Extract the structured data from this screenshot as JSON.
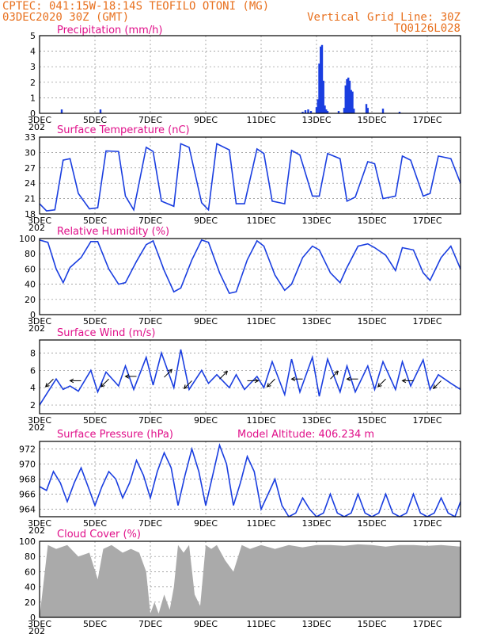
{
  "header": {
    "line1_left": "CPTEC:   041:15W-18:14S  TEOFILO OTONI (MG)",
    "line2_left": "03DEC2020 30Z (GMT)",
    "line2_right": "Vertical Grid Line: 30Z",
    "line3_right": "TQ0126L028"
  },
  "colors": {
    "header": "#e8701e",
    "title": "#e0108a",
    "series": "#1a3ee0",
    "cloud": "#aaaaaa"
  },
  "x_axis": {
    "tick_labels": [
      "3DEC",
      "5DEC",
      "7DEC",
      "9DEC",
      "11DEC",
      "13DEC",
      "15DEC",
      "17DEC"
    ],
    "tick_days": [
      0,
      2,
      4,
      6,
      8,
      10,
      12,
      14
    ],
    "range_days": [
      0,
      15.2
    ],
    "year_fragment": "202"
  },
  "chart_data": [
    {
      "type": "bar",
      "title": "Precipitation (mm/h)",
      "ylim": [
        0,
        5
      ],
      "yticks": [
        0,
        1,
        2,
        3,
        4,
        5
      ],
      "grid": true,
      "x": [
        0.8,
        2.2,
        9.5,
        9.6,
        9.7,
        9.8,
        10.0,
        10.05,
        10.1,
        10.15,
        10.2,
        10.25,
        10.3,
        10.35,
        10.4,
        10.8,
        11.0,
        11.05,
        11.1,
        11.15,
        11.2,
        11.25,
        11.3,
        11.35,
        11.8,
        11.85,
        12.4,
        13.0
      ],
      "values": [
        0.25,
        0.25,
        0.1,
        0.2,
        0.25,
        0.15,
        0.4,
        0.9,
        3.2,
        4.3,
        4.4,
        2.1,
        0.5,
        0.25,
        0.15,
        0.15,
        0.35,
        1.8,
        2.2,
        2.3,
        2.1,
        1.5,
        1.4,
        0.3,
        0.6,
        0.35,
        0.3,
        0.1
      ]
    },
    {
      "type": "line",
      "title": "Surface Temperature (nC)",
      "ylim": [
        18,
        33
      ],
      "yticks": [
        18,
        21,
        24,
        27,
        30,
        33
      ],
      "grid": true,
      "series": [
        {
          "x": [
            0.0,
            0.25,
            0.55,
            0.85,
            1.1,
            1.4,
            1.8,
            2.1,
            2.4,
            2.85,
            3.1,
            3.4,
            3.85,
            4.1,
            4.4,
            4.85,
            5.1,
            5.4,
            5.85,
            6.1,
            6.4,
            6.85,
            7.1,
            7.4,
            7.85,
            8.1,
            8.4,
            8.85,
            9.1,
            9.4,
            9.85,
            10.1,
            10.4,
            10.85,
            11.1,
            11.4,
            11.85,
            12.1,
            12.4,
            12.85,
            13.1,
            13.4,
            13.85,
            14.1,
            14.4,
            14.85,
            15.2
          ],
          "values": [
            20.0,
            18.6,
            18.8,
            28.5,
            28.8,
            22.0,
            19.0,
            19.2,
            30.3,
            30.2,
            21.5,
            18.8,
            31.0,
            30.2,
            20.5,
            19.5,
            31.7,
            31.0,
            20.2,
            18.8,
            31.7,
            30.5,
            20.0,
            20.0,
            30.7,
            29.8,
            20.5,
            20.0,
            30.4,
            29.5,
            21.5,
            21.5,
            29.8,
            28.8,
            20.5,
            21.3,
            28.2,
            27.8,
            21.0,
            21.5,
            29.3,
            28.5,
            21.5,
            22.0,
            29.3,
            28.8,
            24.0
          ]
        }
      ]
    },
    {
      "type": "line",
      "title": "Relative Humidity (%)",
      "ylim": [
        0,
        100
      ],
      "yticks": [
        0,
        20,
        40,
        60,
        80,
        100
      ],
      "grid": true,
      "series": [
        {
          "x": [
            0.0,
            0.3,
            0.6,
            0.85,
            1.1,
            1.5,
            1.85,
            2.1,
            2.5,
            2.85,
            3.1,
            3.5,
            3.85,
            4.1,
            4.5,
            4.85,
            5.1,
            5.5,
            5.85,
            6.1,
            6.5,
            6.85,
            7.1,
            7.5,
            7.85,
            8.1,
            8.5,
            8.85,
            9.1,
            9.5,
            9.85,
            10.1,
            10.5,
            10.85,
            11.1,
            11.5,
            11.85,
            12.1,
            12.5,
            12.85,
            13.1,
            13.5,
            13.85,
            14.1,
            14.5,
            14.85,
            15.2
          ],
          "values": [
            98,
            95,
            60,
            42,
            62,
            75,
            96,
            96,
            60,
            40,
            42,
            70,
            92,
            97,
            58,
            30,
            35,
            72,
            98,
            95,
            55,
            28,
            30,
            72,
            97,
            90,
            52,
            32,
            40,
            75,
            90,
            85,
            55,
            42,
            62,
            90,
            93,
            88,
            78,
            58,
            88,
            85,
            55,
            45,
            75,
            90,
            60
          ]
        }
      ]
    },
    {
      "type": "line",
      "title": "Surface Wind (m/s)",
      "ylim": [
        1,
        9.5
      ],
      "yticks": [
        2,
        4,
        6,
        8
      ],
      "grid": true,
      "series": [
        {
          "x": [
            0.0,
            0.3,
            0.6,
            0.85,
            1.1,
            1.4,
            1.85,
            2.1,
            2.4,
            2.85,
            3.1,
            3.4,
            3.85,
            4.1,
            4.4,
            4.85,
            5.1,
            5.4,
            5.85,
            6.1,
            6.4,
            6.85,
            7.1,
            7.4,
            7.85,
            8.1,
            8.4,
            8.85,
            9.1,
            9.4,
            9.85,
            10.1,
            10.4,
            10.85,
            11.1,
            11.4,
            11.85,
            12.1,
            12.4,
            12.85,
            13.1,
            13.4,
            13.85,
            14.1,
            14.4,
            14.85,
            15.2
          ],
          "values": [
            2.0,
            3.5,
            5.0,
            3.8,
            4.2,
            3.6,
            6.0,
            3.5,
            5.8,
            4.2,
            6.5,
            3.8,
            7.5,
            4.3,
            8.0,
            4.0,
            8.4,
            3.8,
            6.0,
            4.5,
            5.5,
            4.0,
            5.5,
            3.8,
            5.3,
            4.0,
            7.0,
            3.2,
            7.3,
            3.5,
            7.5,
            3.0,
            7.3,
            3.5,
            6.5,
            3.5,
            6.5,
            3.8,
            7.0,
            3.8,
            7.0,
            4.2,
            7.2,
            3.8,
            5.5,
            4.5,
            3.8
          ]
        }
      ],
      "wind_arrows": {
        "x": [
          0.5,
          1.5,
          2.5,
          3.5,
          4.5,
          5.5,
          6.5,
          7.5,
          8.5,
          9.5,
          10.5,
          11.5,
          12.5,
          13.5,
          14.5
        ],
        "speed": [
          5.0,
          4.8,
          5.0,
          5.3,
          5.2,
          4.8,
          5.0,
          4.8,
          5.0,
          5.0,
          5.0,
          5.0,
          5.0,
          4.8,
          4.8
        ],
        "direction": [
          "SW",
          "W",
          "SW",
          "W",
          "NE",
          "SW",
          "NE",
          "E",
          "SW",
          "W",
          "NE",
          "W",
          "SW",
          "W",
          "SW"
        ]
      }
    },
    {
      "type": "line",
      "title": "Surface Pressure (hPa)",
      "annotation": "Model Altitude: 406.234 m",
      "ylim": [
        963,
        973
      ],
      "yticks": [
        964,
        966,
        968,
        970,
        972
      ],
      "grid": true,
      "series": [
        {
          "x": [
            0.0,
            0.25,
            0.5,
            0.75,
            1.0,
            1.25,
            1.5,
            1.75,
            2.0,
            2.25,
            2.5,
            2.75,
            3.0,
            3.25,
            3.5,
            3.75,
            4.0,
            4.25,
            4.5,
            4.75,
            5.0,
            5.25,
            5.5,
            5.75,
            6.0,
            6.25,
            6.5,
            6.75,
            7.0,
            7.25,
            7.5,
            7.75,
            8.0,
            8.25,
            8.5,
            8.75,
            9.0,
            9.25,
            9.5,
            9.75,
            10.0,
            10.25,
            10.5,
            10.75,
            11.0,
            11.25,
            11.5,
            11.75,
            12.0,
            12.25,
            12.5,
            12.75,
            13.0,
            13.25,
            13.5,
            13.75,
            14.0,
            14.25,
            14.5,
            14.75,
            15.0,
            15.2
          ],
          "values": [
            967.0,
            966.5,
            969.0,
            967.5,
            965.0,
            967.5,
            969.5,
            967.0,
            964.5,
            967.0,
            969.0,
            968.0,
            965.5,
            967.5,
            970.5,
            968.5,
            965.5,
            969.0,
            971.5,
            969.5,
            964.5,
            968.5,
            972.0,
            969.0,
            964.5,
            968.5,
            972.5,
            970.0,
            964.5,
            967.5,
            971.0,
            969.0,
            964.0,
            966.0,
            968.0,
            964.5,
            962.5,
            963.5,
            965.5,
            964.0,
            962.5,
            963.5,
            966.0,
            963.5,
            962.5,
            963.5,
            966.0,
            963.5,
            962.5,
            963.5,
            966.0,
            963.5,
            962.5,
            963.5,
            966.0,
            963.5,
            962.5,
            963.5,
            965.5,
            963.5,
            962.5,
            965.0
          ]
        }
      ]
    },
    {
      "type": "area",
      "title": "Cloud Cover (%)",
      "ylim": [
        0,
        100
      ],
      "yticks": [
        0,
        20,
        40,
        60,
        80,
        100
      ],
      "grid": true,
      "series": [
        {
          "x": [
            0.0,
            0.3,
            0.6,
            1.0,
            1.4,
            1.8,
            2.1,
            2.3,
            2.6,
            3.0,
            3.3,
            3.6,
            3.85,
            4.0,
            4.15,
            4.3,
            4.5,
            4.7,
            4.85,
            5.0,
            5.2,
            5.4,
            5.6,
            5.8,
            6.0,
            6.2,
            6.4,
            6.7,
            7.0,
            7.3,
            7.6,
            8.0,
            8.5,
            9.0,
            9.5,
            10.0,
            10.5,
            11.0,
            11.5,
            12.0,
            12.5,
            13.0,
            13.5,
            14.0,
            14.5,
            15.2
          ],
          "values": [
            0,
            95,
            90,
            95,
            80,
            85,
            50,
            90,
            95,
            85,
            90,
            85,
            60,
            5,
            20,
            5,
            30,
            10,
            40,
            95,
            85,
            95,
            30,
            15,
            95,
            90,
            95,
            75,
            60,
            95,
            90,
            95,
            90,
            95,
            92,
            95,
            95,
            94,
            96,
            95,
            93,
            95,
            95,
            94,
            95,
            93
          ]
        }
      ]
    }
  ]
}
